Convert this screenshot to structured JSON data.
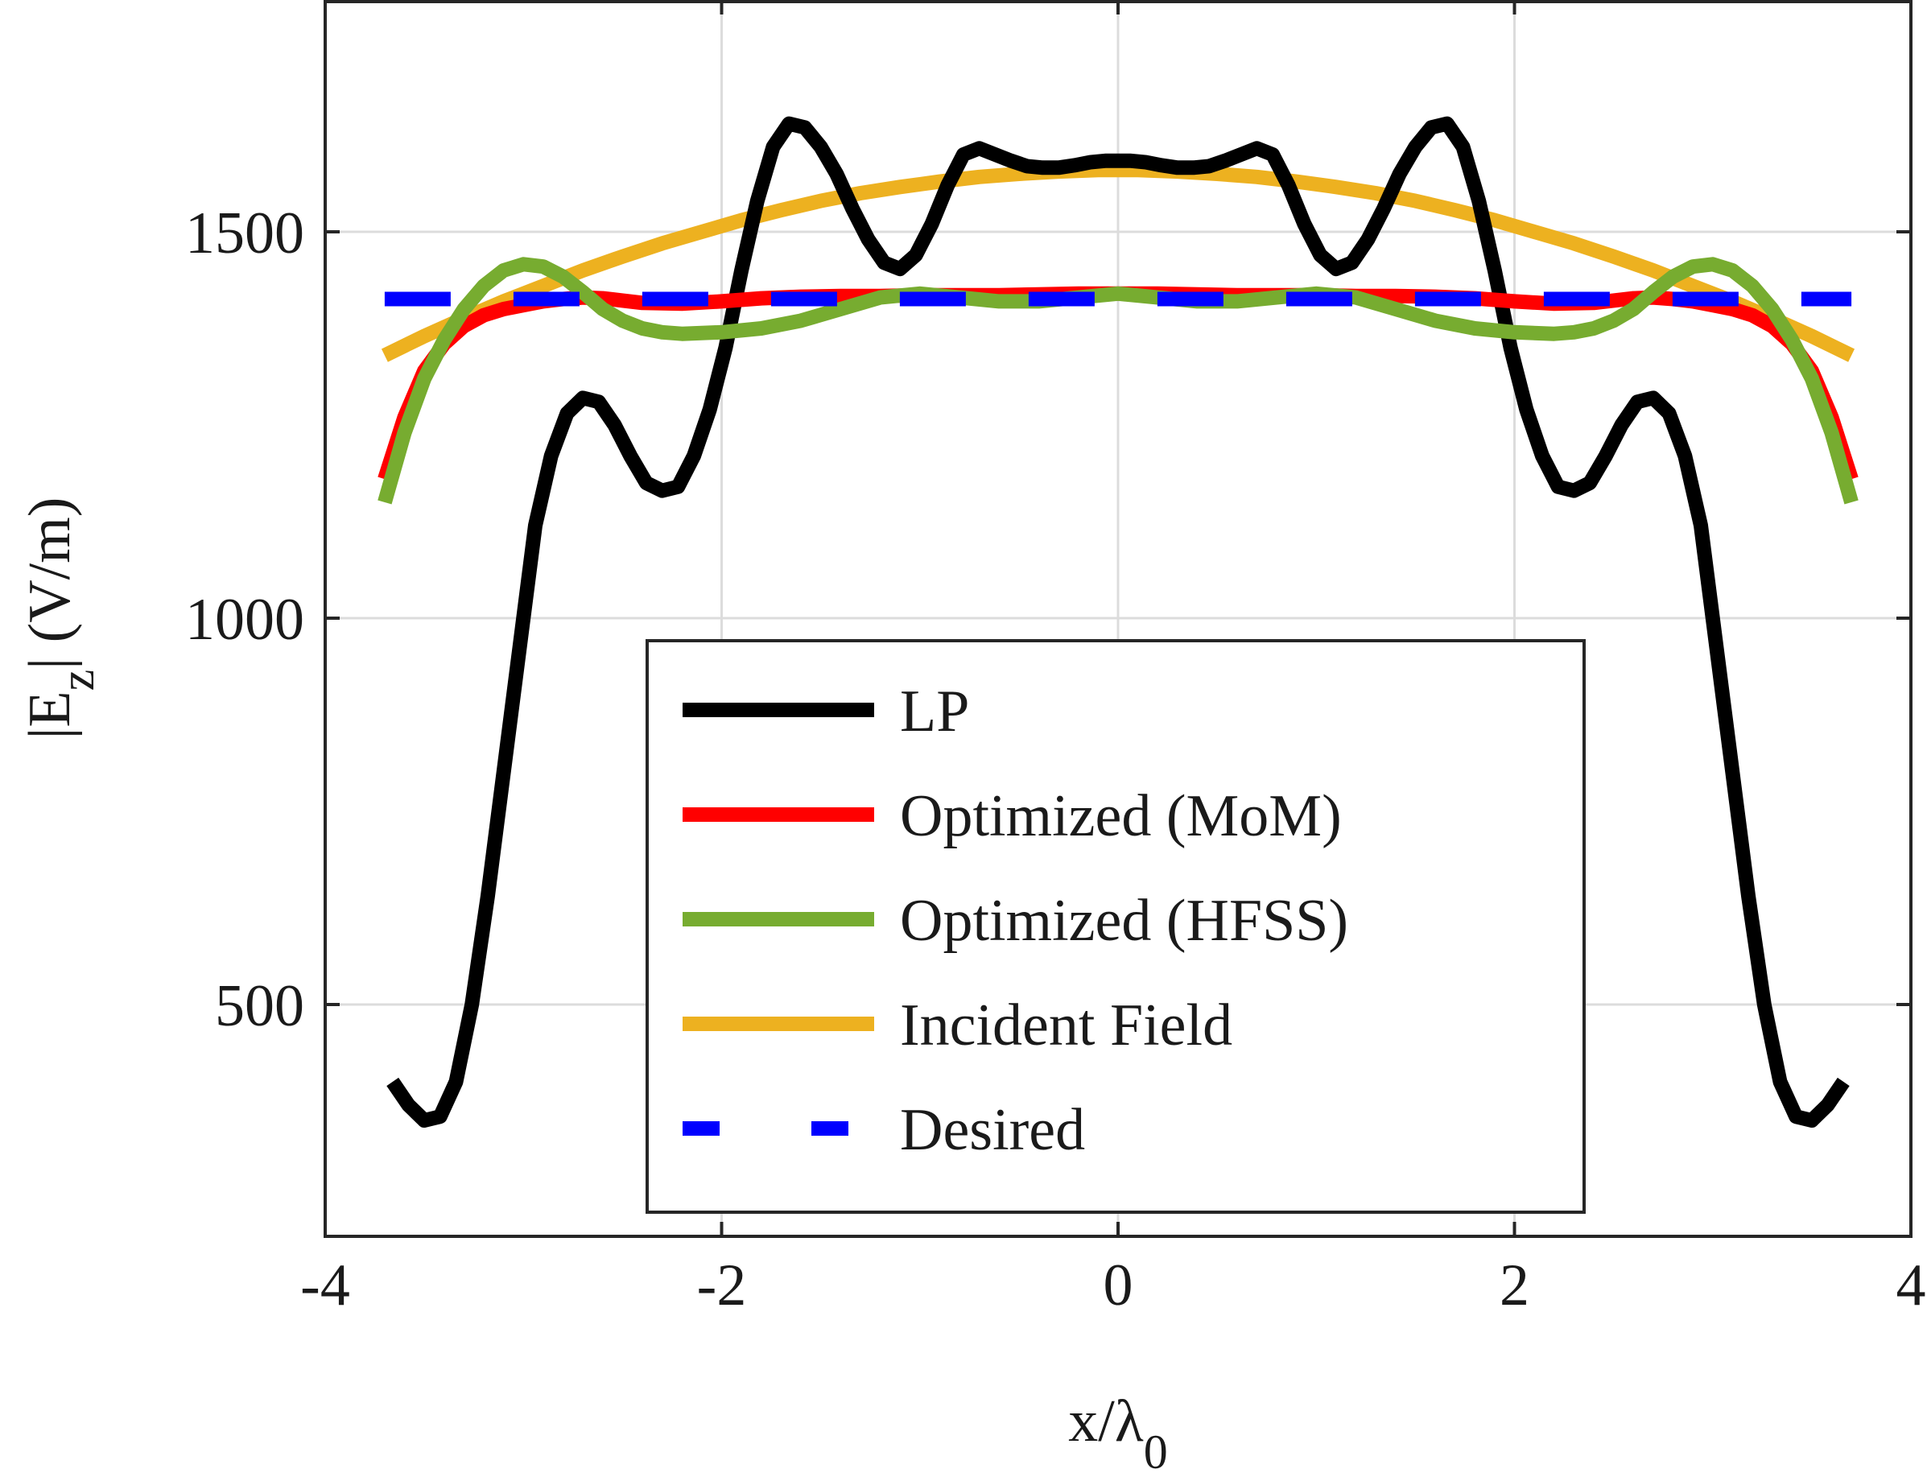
{
  "chart_data": {
    "type": "line",
    "title": "",
    "xlabel": {
      "main": "x/λ",
      "sub": "0"
    },
    "ylabel": {
      "pre": "|E",
      "sub": "z",
      "post": "| (V/m)"
    },
    "xlim": [
      -4,
      4
    ],
    "ylim": [
      200,
      1800
    ],
    "xticks": [
      -4,
      -2,
      0,
      2,
      4
    ],
    "xtick_labels": [
      "-4",
      "-2",
      "0",
      "2",
      "4"
    ],
    "yticks": [
      500,
      1000,
      1500
    ],
    "ytick_labels": [
      "500",
      "1000",
      "1500"
    ],
    "grid": true,
    "legend_position": "bottom-center",
    "series": [
      {
        "name": "LP",
        "color": "#000000",
        "style": "solid",
        "x": [
          -3.66,
          -3.58,
          -3.5,
          -3.42,
          -3.34,
          -3.26,
          -3.18,
          -3.1,
          -3.02,
          -2.94,
          -2.86,
          -2.78,
          -2.7,
          -2.62,
          -2.54,
          -2.46,
          -2.38,
          -2.3,
          -2.22,
          -2.14,
          -2.06,
          -1.98,
          -1.9,
          -1.82,
          -1.74,
          -1.66,
          -1.58,
          -1.5,
          -1.42,
          -1.34,
          -1.26,
          -1.18,
          -1.1,
          -1.02,
          -0.94,
          -0.86,
          -0.78,
          -0.7,
          -0.62,
          -0.54,
          -0.46,
          -0.38,
          -0.3,
          -0.22,
          -0.14,
          -0.06,
          0.0,
          0.06,
          0.14,
          0.22,
          0.3,
          0.38,
          0.46,
          0.54,
          0.62,
          0.7,
          0.78,
          0.86,
          0.94,
          1.02,
          1.1,
          1.18,
          1.26,
          1.34,
          1.42,
          1.5,
          1.58,
          1.66,
          1.74,
          1.82,
          1.9,
          1.98,
          2.06,
          2.14,
          2.22,
          2.3,
          2.38,
          2.46,
          2.54,
          2.62,
          2.7,
          2.78,
          2.86,
          2.94,
          3.02,
          3.1,
          3.18,
          3.26,
          3.34,
          3.42,
          3.5,
          3.58,
          3.66
        ],
        "y": [
          400,
          370,
          350,
          355,
          400,
          500,
          640,
          800,
          960,
          1120,
          1210,
          1265,
          1285,
          1280,
          1250,
          1210,
          1175,
          1165,
          1170,
          1210,
          1270,
          1350,
          1450,
          1540,
          1610,
          1640,
          1635,
          1610,
          1575,
          1530,
          1490,
          1460,
          1452,
          1470,
          1510,
          1560,
          1600,
          1608,
          1600,
          1592,
          1585,
          1583,
          1583,
          1586,
          1590,
          1592,
          1592,
          1592,
          1590,
          1586,
          1583,
          1583,
          1585,
          1592,
          1600,
          1608,
          1600,
          1560,
          1510,
          1470,
          1452,
          1460,
          1490,
          1530,
          1575,
          1610,
          1635,
          1640,
          1610,
          1540,
          1450,
          1350,
          1270,
          1210,
          1170,
          1165,
          1175,
          1210,
          1250,
          1280,
          1285,
          1265,
          1210,
          1120,
          960,
          800,
          640,
          500,
          400,
          355,
          350,
          370,
          400
        ]
      },
      {
        "name": "Optimized (MoM)",
        "color": "#ff0000",
        "style": "solid",
        "x": [
          -3.7,
          -3.6,
          -3.5,
          -3.4,
          -3.3,
          -3.2,
          -3.1,
          -3.0,
          -2.9,
          -2.8,
          -2.7,
          -2.6,
          -2.5,
          -2.4,
          -2.2,
          -2.0,
          -1.8,
          -1.6,
          -1.4,
          -1.2,
          -1.0,
          -0.8,
          -0.6,
          -0.4,
          -0.2,
          0.0,
          0.2,
          0.4,
          0.6,
          0.8,
          1.0,
          1.2,
          1.4,
          1.6,
          1.8,
          2.0,
          2.2,
          2.4,
          2.5,
          2.6,
          2.7,
          2.8,
          2.9,
          3.0,
          3.1,
          3.2,
          3.3,
          3.4,
          3.5,
          3.6,
          3.7
        ],
        "y": [
          1180,
          1260,
          1320,
          1355,
          1378,
          1392,
          1400,
          1405,
          1410,
          1413,
          1415,
          1414,
          1411,
          1408,
          1407,
          1410,
          1414,
          1416,
          1417,
          1417,
          1418,
          1418,
          1418,
          1419,
          1420,
          1420,
          1420,
          1419,
          1418,
          1418,
          1418,
          1417,
          1417,
          1416,
          1414,
          1410,
          1407,
          1408,
          1411,
          1414,
          1415,
          1413,
          1410,
          1405,
          1400,
          1392,
          1378,
          1355,
          1320,
          1260,
          1180
        ]
      },
      {
        "name": "Optimized (HFSS)",
        "color": "#77ac30",
        "style": "solid",
        "x": [
          -3.7,
          -3.6,
          -3.5,
          -3.4,
          -3.3,
          -3.2,
          -3.1,
          -3.0,
          -2.9,
          -2.8,
          -2.7,
          -2.6,
          -2.5,
          -2.4,
          -2.3,
          -2.2,
          -2.0,
          -1.8,
          -1.6,
          -1.4,
          -1.2,
          -1.0,
          -0.8,
          -0.6,
          -0.4,
          -0.2,
          0.0,
          0.2,
          0.4,
          0.6,
          0.8,
          1.0,
          1.2,
          1.4,
          1.6,
          1.8,
          2.0,
          2.2,
          2.3,
          2.4,
          2.5,
          2.6,
          2.7,
          2.8,
          2.9,
          3.0,
          3.1,
          3.2,
          3.3,
          3.4,
          3.5,
          3.6,
          3.7
        ],
        "y": [
          1150,
          1240,
          1310,
          1360,
          1400,
          1430,
          1450,
          1458,
          1455,
          1442,
          1422,
          1400,
          1385,
          1375,
          1370,
          1368,
          1370,
          1375,
          1385,
          1400,
          1415,
          1420,
          1415,
          1410,
          1410,
          1415,
          1420,
          1415,
          1410,
          1410,
          1415,
          1420,
          1415,
          1400,
          1385,
          1375,
          1370,
          1368,
          1370,
          1375,
          1385,
          1400,
          1422,
          1442,
          1455,
          1458,
          1450,
          1430,
          1400,
          1360,
          1310,
          1240,
          1150
        ]
      },
      {
        "name": "Incident Field",
        "color": "#edb120",
        "style": "solid",
        "x": [
          -3.7,
          -3.5,
          -3.3,
          -3.1,
          -2.9,
          -2.7,
          -2.5,
          -2.3,
          -2.1,
          -1.9,
          -1.7,
          -1.5,
          -1.3,
          -1.1,
          -0.9,
          -0.7,
          -0.5,
          -0.3,
          -0.1,
          0.0,
          0.1,
          0.3,
          0.5,
          0.7,
          0.9,
          1.1,
          1.3,
          1.5,
          1.7,
          1.9,
          2.1,
          2.3,
          2.5,
          2.7,
          2.9,
          3.1,
          3.3,
          3.5,
          3.7
        ],
        "y": [
          1340,
          1365,
          1388,
          1410,
          1430,
          1450,
          1468,
          1485,
          1500,
          1515,
          1528,
          1540,
          1550,
          1558,
          1565,
          1571,
          1575,
          1578,
          1580,
          1580,
          1580,
          1578,
          1575,
          1571,
          1565,
          1558,
          1550,
          1540,
          1528,
          1515,
          1500,
          1485,
          1468,
          1450,
          1430,
          1410,
          1388,
          1365,
          1340
        ]
      },
      {
        "name": "Desired",
        "color": "#0000ff",
        "style": "dashed",
        "x": [
          -3.7,
          3.7
        ],
        "y": [
          1413,
          1413
        ]
      }
    ]
  }
}
